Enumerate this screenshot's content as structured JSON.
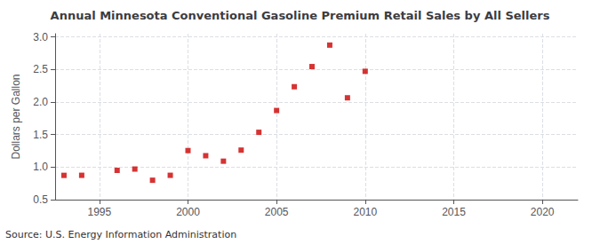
{
  "chart_data": {
    "type": "scatter",
    "title": "Annual Minnesota Conventional Gasoline Premium Retail Sales by All Sellers",
    "ylabel": "Dollars per Gallon",
    "annotation": "Source: U.S. Energy Information Administration",
    "x": [
      1993,
      1994,
      1996,
      1997,
      1998,
      1999,
      2000,
      2001,
      2002,
      2003,
      2004,
      2005,
      2006,
      2007,
      2008,
      2009,
      2010
    ],
    "values": [
      0.873,
      0.874,
      0.95,
      0.97,
      0.798,
      0.874,
      1.254,
      1.175,
      1.091,
      1.261,
      1.535,
      1.87,
      2.235,
      2.545,
      2.875,
      2.065,
      2.472
    ],
    "color": "#cc0000",
    "marker": "square",
    "xlim": [
      1992.5,
      2022
    ],
    "ylim": [
      0.5,
      3.05
    ],
    "xticks": [
      1995,
      2000,
      2005,
      2010,
      2015,
      2020
    ],
    "yticks": [
      0.5,
      {
        "value": 1,
        "label": "1.0"
      },
      1.5,
      {
        "value": 2,
        "label": "2.0"
      },
      2.5,
      {
        "value": 3,
        "label": "3.0"
      }
    ],
    "grid": true
  }
}
